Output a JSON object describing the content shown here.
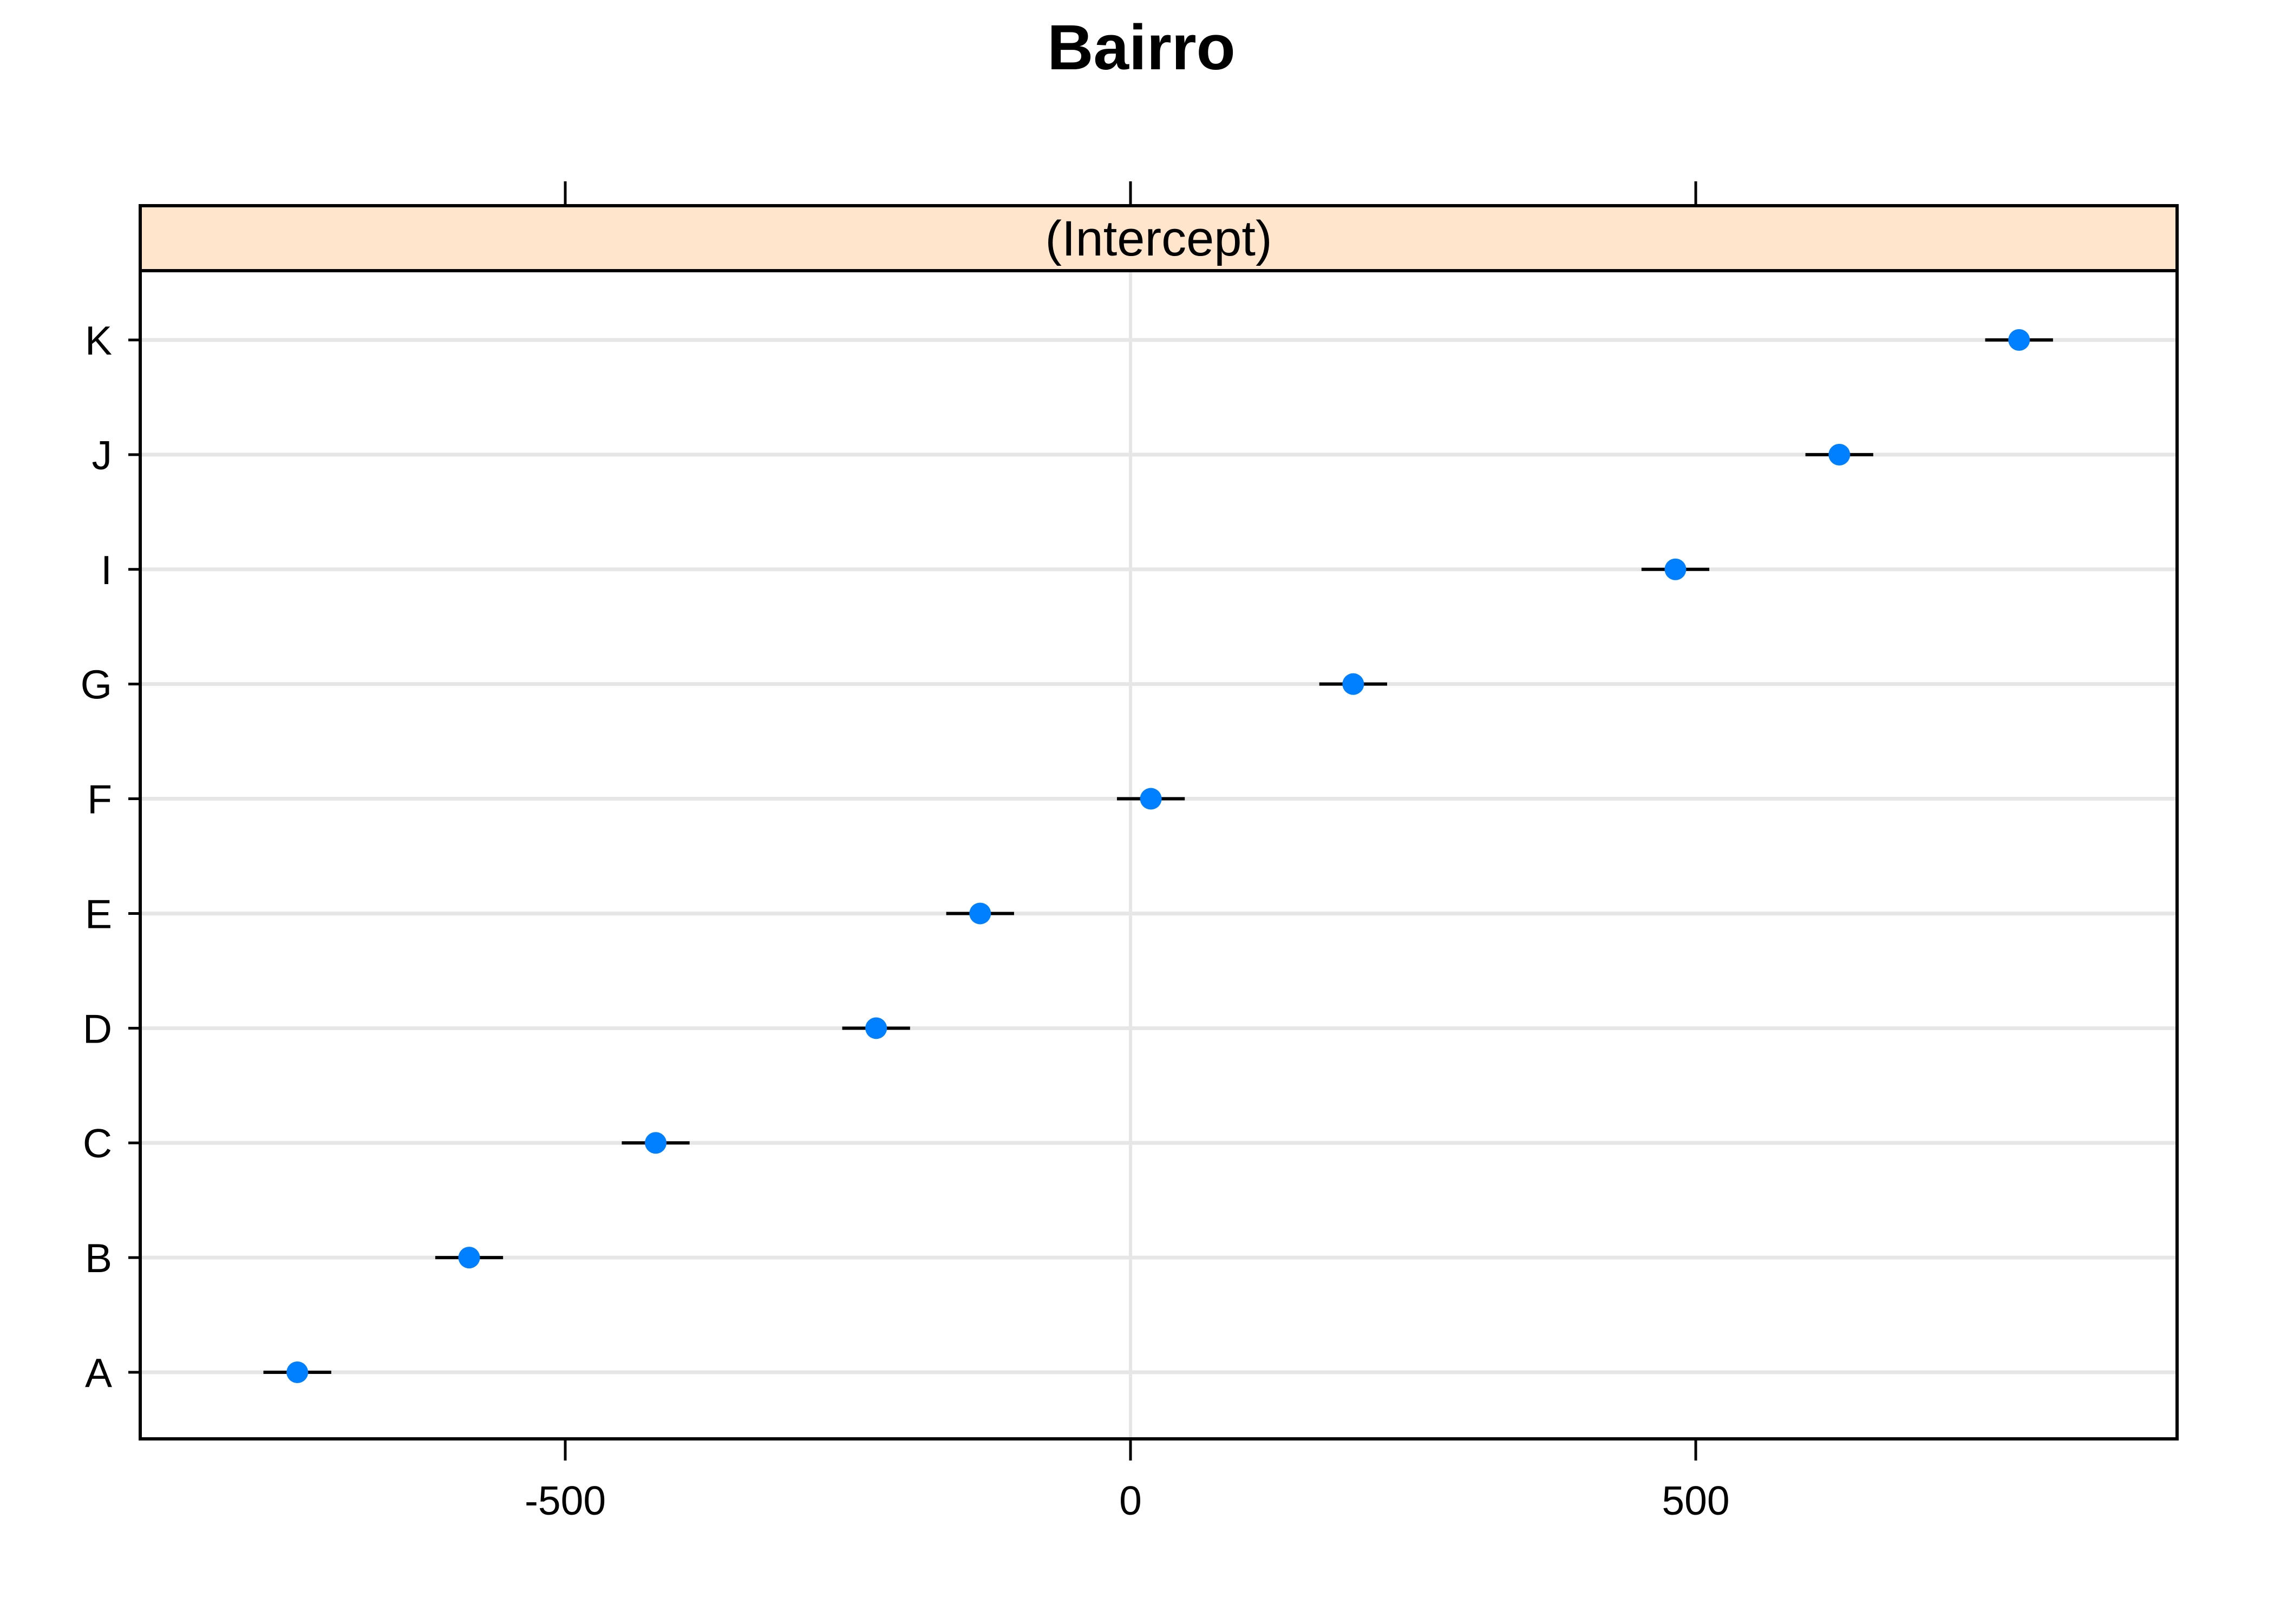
{
  "chart_data": {
    "type": "scatter",
    "title": "Bairro",
    "panel_label": "(Intercept)",
    "categories": [
      "A",
      "B",
      "C",
      "D",
      "E",
      "F",
      "G",
      "I",
      "J",
      "K"
    ],
    "values": [
      -737,
      -585,
      -420,
      -225,
      -133,
      18,
      197,
      482,
      627,
      786
    ],
    "error_low": [
      -767,
      -615,
      -450,
      -255,
      -163,
      -12,
      167,
      452,
      597,
      756
    ],
    "error_high": [
      -707,
      -555,
      -390,
      -195,
      -103,
      48,
      227,
      512,
      657,
      816
    ],
    "x_ticks": [
      -500,
      0,
      500
    ],
    "x_tick_labels": [
      "-500",
      "0",
      "500"
    ],
    "xlim": [
      -875,
      925
    ],
    "xlabel": "",
    "ylabel": "",
    "grid": true,
    "point_color": "#0080ff",
    "strip_color": "#ffe5cc",
    "grid_color": "#e6e6e6"
  }
}
